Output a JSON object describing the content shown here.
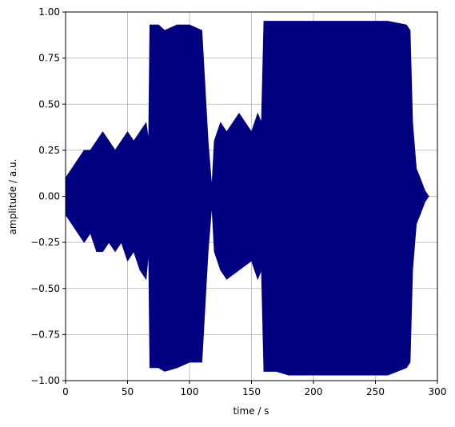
{
  "chart_data": {
    "type": "envelope",
    "xlabel": "time / s",
    "ylabel": "amplitude / a.u.",
    "color": "#000080",
    "grid": true,
    "xlim": [
      0,
      300
    ],
    "xticks": [
      0,
      50,
      100,
      150,
      200,
      250,
      300
    ],
    "ylim": [
      -1,
      1
    ],
    "yticks": [
      {
        "value": -1,
        "label": "−1.00"
      },
      {
        "value": -0.75,
        "label": "−0.75"
      },
      {
        "value": -0.5,
        "label": "−0.50"
      },
      {
        "value": -0.25,
        "label": "−0.25"
      },
      {
        "value": 0,
        "label": "0.00"
      },
      {
        "value": 0.25,
        "label": "0.25"
      },
      {
        "value": 0.5,
        "label": "0.50"
      },
      {
        "value": 0.75,
        "label": "0.75"
      },
      {
        "value": 1,
        "label": "1.00"
      }
    ],
    "x": [
      0,
      5,
      10,
      15,
      20,
      25,
      30,
      35,
      40,
      45,
      50,
      55,
      60,
      65,
      67,
      68,
      75,
      80,
      90,
      100,
      110,
      115,
      118,
      120,
      125,
      130,
      140,
      150,
      155,
      158,
      160,
      170,
      180,
      200,
      220,
      240,
      260,
      275,
      278,
      280,
      283,
      286,
      290,
      293
    ],
    "max": [
      0.1,
      0.15,
      0.2,
      0.25,
      0.25,
      0.3,
      0.35,
      0.3,
      0.25,
      0.3,
      0.35,
      0.3,
      0.35,
      0.4,
      0.3,
      0.93,
      0.93,
      0.9,
      0.93,
      0.93,
      0.9,
      0.3,
      0.05,
      0.3,
      0.4,
      0.35,
      0.45,
      0.35,
      0.45,
      0.4,
      0.95,
      0.95,
      0.95,
      0.95,
      0.95,
      0.95,
      0.95,
      0.93,
      0.9,
      0.4,
      0.15,
      0.1,
      0.03,
      0
    ],
    "min": [
      -0.1,
      -0.15,
      -0.2,
      -0.25,
      -0.2,
      -0.3,
      -0.3,
      -0.25,
      -0.3,
      -0.25,
      -0.35,
      -0.3,
      -0.4,
      -0.45,
      -0.3,
      -0.93,
      -0.93,
      -0.95,
      -0.93,
      -0.9,
      -0.9,
      -0.3,
      -0.05,
      -0.3,
      -0.4,
      -0.45,
      -0.4,
      -0.35,
      -0.45,
      -0.4,
      -0.95,
      -0.95,
      -0.97,
      -0.97,
      -0.97,
      -0.97,
      -0.97,
      -0.93,
      -0.9,
      -0.4,
      -0.15,
      -0.1,
      -0.03,
      0
    ]
  }
}
